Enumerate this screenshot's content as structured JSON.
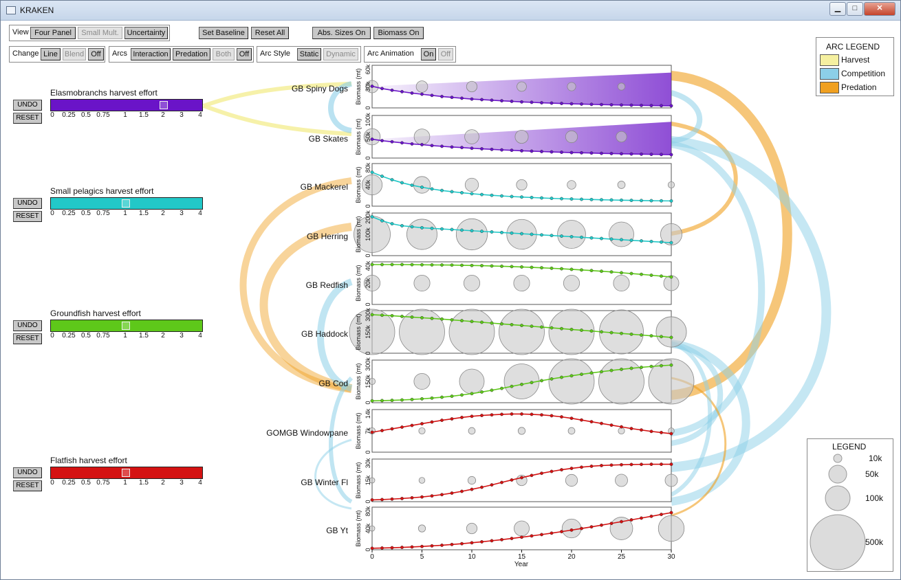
{
  "window": {
    "title": "KRAKEN",
    "minimize": "▁",
    "maximize": "□",
    "close": "✕"
  },
  "toolbar": {
    "view": {
      "label": "View",
      "buttons": [
        "Four Panel",
        "Small Mult.",
        "Uncertainty"
      ]
    },
    "set_baseline": "Set Baseline",
    "reset_all": "Reset All",
    "abs_sizes": "Abs. Sizes On",
    "biomass": "Biomass On",
    "change": {
      "label": "Change",
      "buttons": [
        "Line",
        "Blend",
        "Off"
      ]
    },
    "arcs": {
      "label": "Arcs",
      "buttons": [
        "Interaction",
        "Predation",
        "Both",
        "Off"
      ]
    },
    "arc_style": {
      "label": "Arc Style",
      "buttons": [
        "Static",
        "Dynamic"
      ]
    },
    "arc_animation": {
      "label": "Arc Animation",
      "buttons": [
        "On",
        "Off"
      ]
    }
  },
  "effort": {
    "undo": "UNDO",
    "reset": "RESET",
    "ticks": [
      "0",
      "0.25",
      "0.5",
      "0.75",
      "1",
      "1.5",
      "2",
      "3",
      "4"
    ],
    "groups": [
      {
        "label": "Elasmobranchs harvest effort",
        "color": "#6a14c8",
        "value": 2
      },
      {
        "label": "Small pelagics harvest effort",
        "color": "#22c8c8",
        "value": 1
      },
      {
        "label": "Groundfish harvest effort",
        "color": "#5ec81a",
        "value": 1
      },
      {
        "label": "Flatfish harvest effort",
        "color": "#d41212",
        "value": 1
      }
    ]
  },
  "species": [
    "GB Spiny Dogs",
    "GB Skates",
    "GB Mackerel",
    "GB Herring",
    "GB Redfish",
    "GB Haddock",
    "GB Cod",
    "GOMGB Windowpane",
    "GB Winter Fl",
    "GB Yt"
  ],
  "axis": {
    "ylabel": "Biomass (mt)",
    "xlabel": "Year",
    "xticks": [
      "0",
      "5",
      "10",
      "15",
      "20",
      "25",
      "30"
    ]
  },
  "arc_legend": {
    "title": "ARC LEGEND",
    "items": [
      {
        "label": "Harvest",
        "color": "#f5f0a0"
      },
      {
        "label": "Competition",
        "color": "#8ccfe8"
      },
      {
        "label": "Predation",
        "color": "#f0a020"
      }
    ]
  },
  "size_legend": {
    "title": "LEGEND",
    "items": [
      "10k",
      "50k",
      "100k",
      "500k"
    ]
  },
  "chart_data": [
    {
      "type": "line",
      "series_name": "GB Spiny Dogs",
      "color": "#6a14c8",
      "yticks": [
        "0",
        "30k",
        "60k"
      ],
      "ymax": 70000,
      "x": [
        0,
        1,
        2,
        3,
        4,
        5,
        6,
        7,
        8,
        9,
        10,
        11,
        12,
        13,
        14,
        15,
        16,
        17,
        18,
        19,
        20,
        21,
        22,
        23,
        24,
        25,
        26,
        27,
        28,
        29,
        30
      ],
      "values": [
        38000,
        34000,
        31000,
        28500,
        26000,
        24000,
        22000,
        20000,
        18500,
        17000,
        15500,
        14500,
        13500,
        12500,
        11500,
        10500,
        9800,
        9000,
        8400,
        7800,
        7200,
        6700,
        6200,
        5800,
        5400,
        5000,
        4700,
        4400,
        4100,
        3900,
        3700
      ],
      "baseline_max": 62000,
      "bubbles": [
        30000,
        26000,
        22000,
        18000,
        14000,
        10000
      ]
    },
    {
      "type": "line",
      "series_name": "GB Skates",
      "color": "#6a14c8",
      "yticks": [
        "0",
        "50k",
        "100k"
      ],
      "ymax": 110000,
      "x": [
        0,
        1,
        2,
        3,
        4,
        5,
        6,
        7,
        8,
        9,
        10,
        11,
        12,
        13,
        14,
        15,
        16,
        17,
        18,
        19,
        20,
        21,
        22,
        23,
        24,
        25,
        26,
        27,
        28,
        29,
        30
      ],
      "values": [
        52000,
        48000,
        45000,
        42000,
        39000,
        37000,
        34500,
        32500,
        30500,
        29000,
        27000,
        25500,
        24000,
        22500,
        21500,
        20000,
        19000,
        18000,
        17000,
        16000,
        15000,
        14500,
        13800,
        13000,
        12400,
        11800,
        11200,
        10700,
        10200,
        9800,
        9400
      ],
      "baseline_max": 100000,
      "bubbles": [
        52000,
        48000,
        40000,
        34000,
        28000,
        22000
      ]
    },
    {
      "type": "line",
      "series_name": "GB Mackerel",
      "color": "#22c8c8",
      "yticks": [
        "0",
        "40k",
        "80k"
      ],
      "ymax": 80000,
      "x": [
        0,
        1,
        2,
        3,
        4,
        5,
        6,
        7,
        8,
        9,
        10,
        11,
        12,
        13,
        14,
        15,
        16,
        17,
        18,
        19,
        20,
        21,
        22,
        23,
        24,
        25,
        26,
        27,
        28,
        29,
        30
      ],
      "values": [
        68000,
        60000,
        53000,
        47000,
        42000,
        38000,
        34500,
        31500,
        29000,
        27000,
        25000,
        23300,
        21800,
        20500,
        19300,
        18300,
        17400,
        16500,
        15700,
        15000,
        14400,
        13800,
        13300,
        12800,
        12400,
        12000,
        11600,
        11300,
        11000,
        10700,
        10500
      ],
      "bubbles": [
        80000,
        55000,
        35000,
        22000,
        15000,
        11000,
        8000
      ]
    },
    {
      "type": "line",
      "series_name": "GB Herring",
      "color": "#22c8c8",
      "yticks": [
        "0",
        "100k",
        "200k"
      ],
      "ymax": 200000,
      "x": [
        0,
        1,
        2,
        3,
        4,
        5,
        6,
        7,
        8,
        9,
        10,
        11,
        12,
        13,
        14,
        15,
        16,
        17,
        18,
        19,
        20,
        21,
        22,
        23,
        24,
        25,
        26,
        27,
        28,
        29,
        30
      ],
      "values": [
        195000,
        175000,
        160000,
        150000,
        145000,
        140000,
        137000,
        134000,
        131000,
        128000,
        125000,
        122000,
        119000,
        116000,
        113000,
        110000,
        107000,
        104000,
        101000,
        98000,
        95000,
        92000,
        89000,
        86000,
        83000,
        80000,
        77000,
        74000,
        71000,
        68000,
        65000
      ],
      "bubbles": [
        260000,
        180000,
        190000,
        175000,
        155000,
        120000,
        90000
      ]
    },
    {
      "type": "line",
      "series_name": "GB Redfish",
      "color": "#5ec81a",
      "yticks": [
        "0",
        "20k",
        "40k"
      ],
      "ymax": 40000,
      "x": [
        0,
        1,
        2,
        3,
        4,
        5,
        6,
        7,
        8,
        9,
        10,
        11,
        12,
        13,
        14,
        15,
        16,
        17,
        18,
        19,
        20,
        21,
        22,
        23,
        24,
        25,
        26,
        27,
        28,
        29,
        30
      ],
      "values": [
        40000,
        40000,
        40000,
        40000,
        39900,
        39800,
        39700,
        39600,
        39500,
        39300,
        39100,
        38900,
        38600,
        38300,
        38000,
        37600,
        37200,
        36800,
        36300,
        35800,
        35200,
        34600,
        34000,
        33300,
        32600,
        31800,
        31000,
        30200,
        29300,
        28400,
        27500
      ],
      "bubbles": [
        50000,
        50000,
        50000,
        50000,
        50000,
        50000,
        45000
      ]
    },
    {
      "type": "line",
      "series_name": "GB Haddock",
      "color": "#5ec81a",
      "yticks": [
        "0",
        "150k",
        "300k"
      ],
      "ymax": 300000,
      "x": [
        0,
        1,
        2,
        3,
        4,
        5,
        6,
        7,
        8,
        9,
        10,
        11,
        12,
        13,
        14,
        15,
        16,
        17,
        18,
        19,
        20,
        21,
        22,
        23,
        24,
        25,
        26,
        27,
        28,
        29,
        30
      ],
      "values": [
        290000,
        286000,
        282000,
        277000,
        272000,
        267000,
        262000,
        257000,
        251000,
        245000,
        239000,
        233000,
        227000,
        221000,
        215000,
        209000,
        203000,
        197000,
        191000,
        185000,
        179000,
        173000,
        167000,
        161000,
        155000,
        149000,
        143000,
        137000,
        131000,
        125000,
        119000
      ],
      "bubbles": [
        500000,
        500000,
        500000,
        500000,
        480000,
        380000,
        180000
      ]
    },
    {
      "type": "line",
      "series_name": "GB Cod",
      "color": "#5ec81a",
      "yticks": [
        "0",
        "150k",
        "300k"
      ],
      "ymax": 320000,
      "x": [
        0,
        1,
        2,
        3,
        4,
        5,
        6,
        7,
        8,
        9,
        10,
        11,
        12,
        13,
        14,
        15,
        16,
        17,
        18,
        19,
        20,
        21,
        22,
        23,
        24,
        25,
        26,
        27,
        28,
        29,
        30
      ],
      "values": [
        15000,
        17000,
        19000,
        22000,
        26000,
        31000,
        37000,
        44000,
        52000,
        62000,
        73000,
        86000,
        100000,
        115000,
        131000,
        147000,
        162000,
        177000,
        191000,
        204000,
        216000,
        228000,
        239000,
        249000,
        259000,
        268000,
        276000,
        284000,
        291000,
        297000,
        302000
      ],
      "bubbles": [
        8000,
        50000,
        120000,
        240000,
        420000,
        500000,
        500000
      ]
    },
    {
      "type": "line",
      "series_name": "GOMGB Windowpane",
      "color": "#d41212",
      "yticks": [
        "0",
        "7k",
        "14k"
      ],
      "ymax": 14000,
      "x": [
        0,
        1,
        2,
        3,
        4,
        5,
        6,
        7,
        8,
        9,
        10,
        11,
        12,
        13,
        14,
        15,
        16,
        17,
        18,
        19,
        20,
        21,
        22,
        23,
        24,
        25,
        26,
        27,
        28,
        29,
        30
      ],
      "values": [
        7000,
        7600,
        8200,
        8800,
        9400,
        10000,
        10600,
        11200,
        11700,
        12200,
        12600,
        12900,
        13100,
        13300,
        13400,
        13400,
        13300,
        13100,
        12800,
        12400,
        11900,
        11300,
        10700,
        10100,
        9500,
        8900,
        8300,
        7800,
        7300,
        6900,
        6500
      ],
      "bubbles": [
        8000,
        8000,
        9000,
        10000,
        9000,
        8000,
        7000
      ]
    },
    {
      "type": "line",
      "series_name": "GB Winter Fl",
      "color": "#d41212",
      "yticks": [
        "0",
        "15k",
        "30k"
      ],
      "ymax": 34000,
      "x": [
        0,
        1,
        2,
        3,
        4,
        5,
        6,
        7,
        8,
        9,
        10,
        11,
        12,
        13,
        14,
        15,
        16,
        17,
        18,
        19,
        20,
        21,
        22,
        23,
        24,
        25,
        26,
        27,
        28,
        29,
        30
      ],
      "values": [
        1500,
        1800,
        2200,
        2700,
        3300,
        4000,
        4900,
        6000,
        7300,
        8800,
        10500,
        12300,
        14300,
        16400,
        18500,
        20500,
        22400,
        24200,
        25800,
        27200,
        28400,
        29400,
        30200,
        30800,
        31200,
        31500,
        31700,
        31800,
        31900,
        31900,
        31900
      ],
      "bubbles": [
        3000,
        7000,
        12000,
        22000,
        28000,
        30000,
        30000
      ]
    },
    {
      "type": "line",
      "series_name": "GB Yt",
      "color": "#d41212",
      "yticks": [
        "0",
        "40k",
        "80k"
      ],
      "ymax": 80000,
      "x": [
        0,
        1,
        2,
        3,
        4,
        5,
        6,
        7,
        8,
        9,
        10,
        11,
        12,
        13,
        14,
        15,
        16,
        17,
        18,
        19,
        20,
        21,
        22,
        23,
        24,
        25,
        26,
        27,
        28,
        29,
        30
      ],
      "values": [
        3000,
        3500,
        4100,
        4800,
        5600,
        6600,
        7800,
        9100,
        10600,
        12200,
        14000,
        16000,
        18100,
        20300,
        22700,
        25200,
        27800,
        30500,
        33400,
        36400,
        39500,
        42700,
        46000,
        49400,
        52900,
        56400,
        60000,
        63600,
        67200,
        70900,
        74500
      ],
      "bubbles": [
        4000,
        10000,
        22000,
        45000,
        70000,
        100000,
        130000
      ]
    }
  ]
}
